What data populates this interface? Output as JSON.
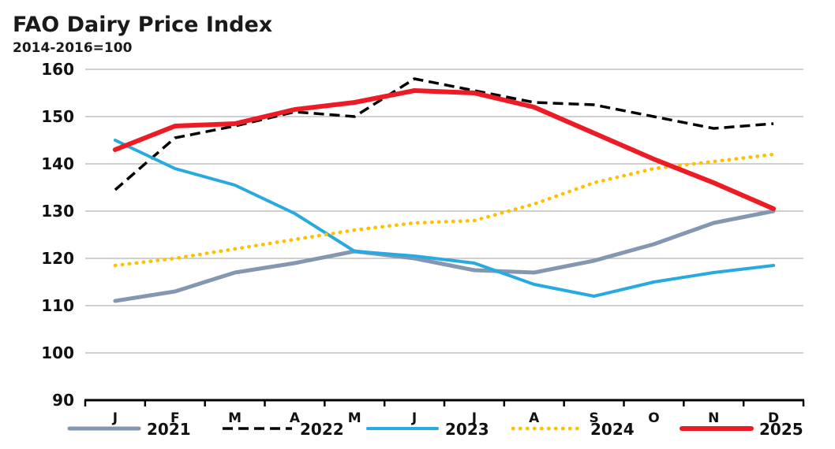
{
  "title": "FAO Dairy Price Index",
  "subtitle": "2014-2016=100",
  "chart_data": {
    "type": "line",
    "x_categories": [
      "J",
      "F",
      "M",
      "A",
      "M",
      "J",
      "J",
      "A",
      "S",
      "O",
      "N",
      "D"
    ],
    "ylim": [
      90,
      160
    ],
    "yticks": [
      90,
      100,
      110,
      120,
      130,
      140,
      150,
      160
    ],
    "grid": "horizontal",
    "legend_position": "bottom",
    "series": [
      {
        "name": "2021",
        "color": "#8497B0",
        "style": "solid",
        "values": [
          111,
          113,
          117,
          119,
          121.5,
          120,
          117.5,
          117,
          119.5,
          123,
          127.5,
          130
        ]
      },
      {
        "name": "2022",
        "color": "#000000",
        "style": "dashed",
        "values": [
          134.5,
          145.5,
          148,
          151,
          150,
          158,
          155.5,
          153,
          152.5,
          150,
          147.5,
          148.5
        ]
      },
      {
        "name": "2023",
        "color": "#27AAE1",
        "style": "solid",
        "values": [
          145,
          139,
          135.5,
          129.5,
          121.5,
          120.5,
          119,
          114.5,
          112,
          115,
          117,
          118.5
        ]
      },
      {
        "name": "2024",
        "color": "#FFC000",
        "style": "dotted",
        "values": [
          118.5,
          120,
          122,
          124,
          126,
          127.5,
          128,
          131.5,
          136,
          139,
          140.5,
          142
        ]
      },
      {
        "name": "2025",
        "color": "#ED1C24",
        "style": "solid",
        "values": [
          143,
          148,
          148.5,
          151.5,
          153,
          155.5,
          155,
          152,
          146.5,
          141,
          136,
          130.5
        ]
      }
    ]
  }
}
